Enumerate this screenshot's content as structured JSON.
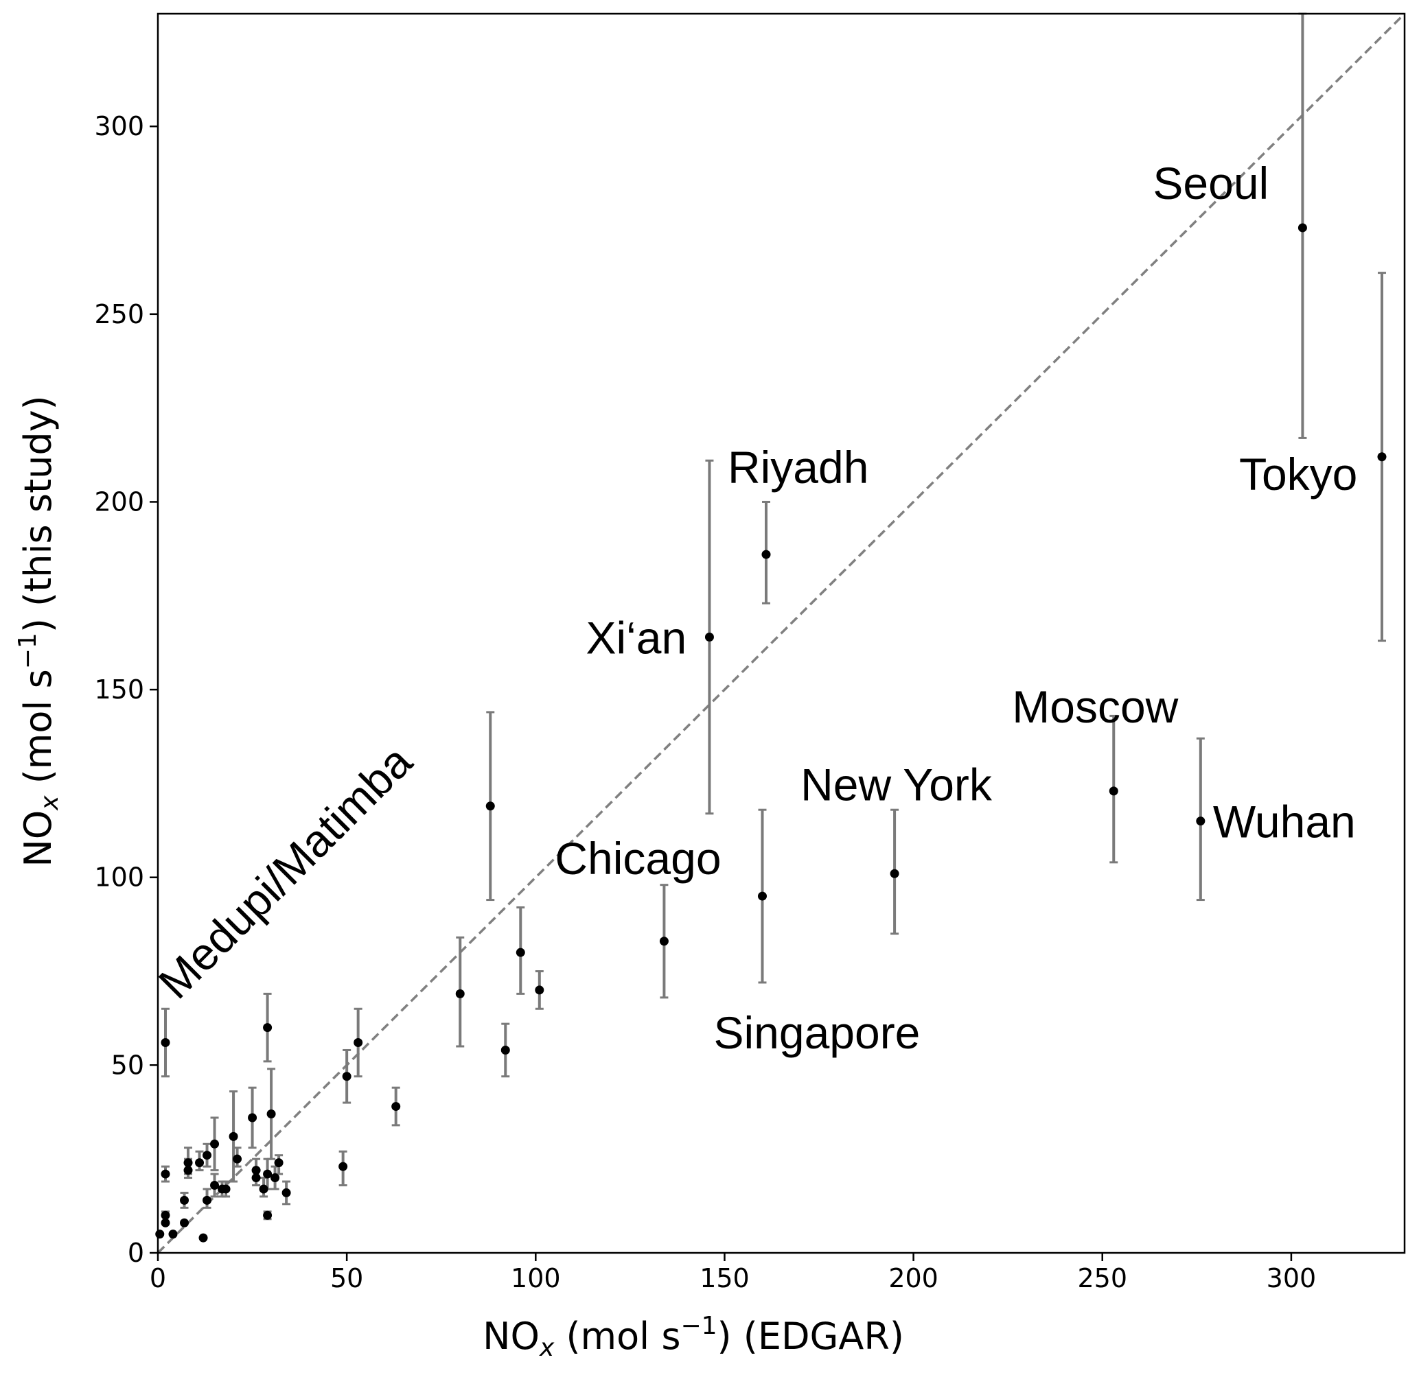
{
  "chart_data": {
    "type": "scatter",
    "xlabel": "NO",
    "xlabel_sub": "x",
    "xlabel_unit": " (mol s",
    "xlabel_sup": "−1",
    "xlabel_tail": ") (EDGAR)",
    "ylabel": "NO",
    "ylabel_sub": "x",
    "ylabel_unit": " (mol s",
    "ylabel_sup": "−1",
    "ylabel_tail": ") (this study)",
    "xlim": [
      0,
      330
    ],
    "ylim": [
      0,
      330
    ],
    "xticks": [
      0,
      50,
      100,
      150,
      200,
      250,
      300
    ],
    "yticks": [
      0,
      50,
      100,
      150,
      200,
      250,
      300
    ],
    "xtick_labels": [
      "0",
      "50",
      "100",
      "150",
      "200",
      "250",
      "300"
    ],
    "ytick_labels": [
      "0",
      "50",
      "100",
      "150",
      "200",
      "250",
      "300"
    ],
    "reference_line": "1:1 dashed",
    "colors": {
      "point": "#000000",
      "errorbar": "#7a7a7a",
      "reference": "#808080"
    },
    "grid": false,
    "points": [
      {
        "x": 303,
        "y": 273,
        "ylo": 217,
        "yhi": 330,
        "label": "Seoul"
      },
      {
        "x": 324,
        "y": 212,
        "ylo": 163,
        "yhi": 261,
        "label": "Tokyo"
      },
      {
        "x": 161,
        "y": 186,
        "ylo": 173,
        "yhi": 200,
        "label": "Riyadh"
      },
      {
        "x": 146,
        "y": 164,
        "ylo": 117,
        "yhi": 211,
        "label": "Xi‘an"
      },
      {
        "x": 253,
        "y": 123,
        "ylo": 104,
        "yhi": 143,
        "label": "Moscow"
      },
      {
        "x": 276,
        "y": 115,
        "ylo": 94,
        "yhi": 137,
        "label": "Wuhan"
      },
      {
        "x": 195,
        "y": 101,
        "ylo": 85,
        "yhi": 118,
        "label": "New York"
      },
      {
        "x": 160,
        "y": 95,
        "ylo": 72,
        "yhi": 118,
        "label": "Singapore"
      },
      {
        "x": 134,
        "y": 83,
        "ylo": 68,
        "yhi": 98,
        "label": "Chicago"
      },
      {
        "x": 2,
        "y": 56,
        "ylo": 47,
        "yhi": 65,
        "label": "Medupi/Matimba"
      },
      {
        "x": 88,
        "y": 119,
        "ylo": 94,
        "yhi": 144
      },
      {
        "x": 80,
        "y": 69,
        "ylo": 55,
        "yhi": 84
      },
      {
        "x": 96,
        "y": 80,
        "ylo": 69,
        "yhi": 92
      },
      {
        "x": 101,
        "y": 70,
        "ylo": 65,
        "yhi": 75
      },
      {
        "x": 92,
        "y": 54,
        "ylo": 47,
        "yhi": 61
      },
      {
        "x": 63,
        "y": 39,
        "ylo": 34,
        "yhi": 44
      },
      {
        "x": 53,
        "y": 56,
        "ylo": 47,
        "yhi": 65
      },
      {
        "x": 50,
        "y": 47,
        "ylo": 40,
        "yhi": 54
      },
      {
        "x": 49,
        "y": 23,
        "ylo": 18,
        "yhi": 27
      },
      {
        "x": 29,
        "y": 60,
        "ylo": 51,
        "yhi": 69
      },
      {
        "x": 30,
        "y": 37,
        "ylo": 25,
        "yhi": 49
      },
      {
        "x": 25,
        "y": 36,
        "ylo": 28,
        "yhi": 44
      },
      {
        "x": 20,
        "y": 31,
        "ylo": 19,
        "yhi": 43
      },
      {
        "x": 15,
        "y": 29,
        "ylo": 22,
        "yhi": 36
      },
      {
        "x": 21,
        "y": 25,
        "ylo": 23,
        "yhi": 28
      },
      {
        "x": 13,
        "y": 26,
        "ylo": 23,
        "yhi": 29
      },
      {
        "x": 11,
        "y": 24,
        "ylo": 22,
        "yhi": 27
      },
      {
        "x": 8,
        "y": 24,
        "ylo": 21,
        "yhi": 28
      },
      {
        "x": 8,
        "y": 22,
        "ylo": 20,
        "yhi": 25
      },
      {
        "x": 2,
        "y": 21,
        "ylo": 19,
        "yhi": 23
      },
      {
        "x": 26,
        "y": 22,
        "ylo": 20,
        "yhi": 25
      },
      {
        "x": 26,
        "y": 20,
        "ylo": 18,
        "yhi": 22
      },
      {
        "x": 29,
        "y": 21,
        "ylo": 17,
        "yhi": 25
      },
      {
        "x": 31,
        "y": 20,
        "ylo": 17,
        "yhi": 23
      },
      {
        "x": 32,
        "y": 24,
        "ylo": 21,
        "yhi": 26
      },
      {
        "x": 28,
        "y": 17,
        "ylo": 15,
        "yhi": 20
      },
      {
        "x": 34,
        "y": 16,
        "ylo": 13,
        "yhi": 19
      },
      {
        "x": 15,
        "y": 18,
        "ylo": 15,
        "yhi": 21
      },
      {
        "x": 17,
        "y": 17,
        "ylo": 15,
        "yhi": 19
      },
      {
        "x": 18,
        "y": 17,
        "ylo": 15,
        "yhi": 19
      },
      {
        "x": 13,
        "y": 14,
        "ylo": 12,
        "yhi": 17
      },
      {
        "x": 7,
        "y": 14,
        "ylo": 12,
        "yhi": 16
      },
      {
        "x": 29,
        "y": 10,
        "ylo": 9,
        "yhi": 11
      },
      {
        "x": 2,
        "y": 10,
        "ylo": 8,
        "yhi": 11
      },
      {
        "x": 2,
        "y": 8
      },
      {
        "x": 7,
        "y": 8
      },
      {
        "x": 0.5,
        "y": 5
      },
      {
        "x": 4,
        "y": 5
      },
      {
        "x": 12,
        "y": 4
      }
    ]
  }
}
